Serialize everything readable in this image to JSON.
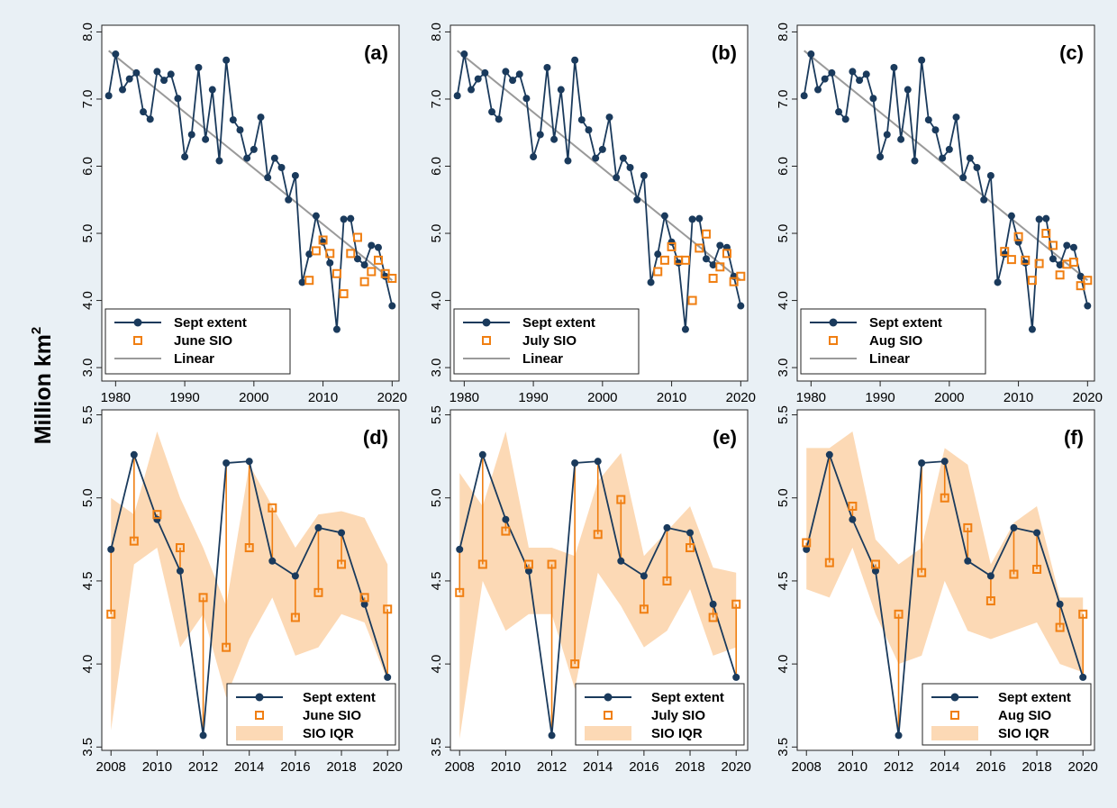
{
  "figure": {
    "ylabel": "Million km",
    "ylabel_superscript": "2",
    "background": "#e9f0f5",
    "panel_background": "#ffffff"
  },
  "colors": {
    "extent": "#1a3a5c",
    "sio": "#f07f12",
    "linear": "#9a9a9a",
    "iqr": "#fcd9b5"
  },
  "chart_data": [
    {
      "panel": "(a)",
      "type": "line",
      "xlim": [
        1978,
        2021
      ],
      "ylim": [
        2.8,
        8.1
      ],
      "xticks": [
        1980,
        1990,
        2000,
        2010,
        2020
      ],
      "yticks": [
        3.0,
        4.0,
        5.0,
        6.0,
        7.0,
        8.0
      ],
      "ytick_labels": [
        "3.0",
        "4.0",
        "5.0",
        "6.0",
        "7.0",
        "8.0"
      ],
      "legend": {
        "position": "bottom-left",
        "entries": [
          "Sept extent",
          "June SIO",
          "Linear"
        ]
      },
      "series": [
        {
          "name": "Sept extent",
          "kind": "line-markers",
          "x": [
            1979,
            1980,
            1981,
            1982,
            1983,
            1984,
            1985,
            1986,
            1987,
            1988,
            1989,
            1990,
            1991,
            1992,
            1993,
            1994,
            1995,
            1996,
            1997,
            1998,
            1999,
            2000,
            2001,
            2002,
            2003,
            2004,
            2005,
            2006,
            2007,
            2008,
            2009,
            2010,
            2011,
            2012,
            2013,
            2014,
            2015,
            2016,
            2017,
            2018,
            2019,
            2020
          ],
          "y": [
            7.05,
            7.67,
            7.14,
            7.3,
            7.39,
            6.81,
            6.7,
            7.41,
            7.28,
            7.37,
            7.01,
            6.14,
            6.47,
            7.47,
            6.4,
            7.14,
            6.08,
            7.58,
            6.69,
            6.54,
            6.12,
            6.25,
            6.73,
            5.83,
            6.12,
            5.98,
            5.5,
            5.86,
            4.27,
            4.69,
            5.26,
            4.87,
            4.56,
            3.57,
            5.21,
            5.22,
            4.62,
            4.53,
            4.82,
            4.79,
            4.36,
            3.92
          ]
        },
        {
          "name": "June SIO",
          "kind": "markers",
          "x": [
            2008,
            2009,
            2010,
            2011,
            2012,
            2013,
            2014,
            2015,
            2016,
            2017,
            2018,
            2019,
            2020
          ],
          "y": [
            4.3,
            4.74,
            4.9,
            4.7,
            4.4,
            4.1,
            4.7,
            4.94,
            4.28,
            4.43,
            4.6,
            4.4,
            4.33
          ]
        },
        {
          "name": "Linear",
          "kind": "line",
          "x": [
            1979,
            2020
          ],
          "y": [
            7.72,
            4.3
          ]
        }
      ]
    },
    {
      "panel": "(b)",
      "type": "line",
      "xlim": [
        1978,
        2021
      ],
      "ylim": [
        2.8,
        8.1
      ],
      "xticks": [
        1980,
        1990,
        2000,
        2010,
        2020
      ],
      "yticks": [
        3.0,
        4.0,
        5.0,
        6.0,
        7.0,
        8.0
      ],
      "ytick_labels": [
        "3.0",
        "4.0",
        "5.0",
        "6.0",
        "7.0",
        "8.0"
      ],
      "legend": {
        "position": "bottom-left",
        "entries": [
          "Sept extent",
          "July SIO",
          "Linear"
        ]
      },
      "series": [
        {
          "name": "Sept extent",
          "kind": "line-markers",
          "x": [
            1979,
            1980,
            1981,
            1982,
            1983,
            1984,
            1985,
            1986,
            1987,
            1988,
            1989,
            1990,
            1991,
            1992,
            1993,
            1994,
            1995,
            1996,
            1997,
            1998,
            1999,
            2000,
            2001,
            2002,
            2003,
            2004,
            2005,
            2006,
            2007,
            2008,
            2009,
            2010,
            2011,
            2012,
            2013,
            2014,
            2015,
            2016,
            2017,
            2018,
            2019,
            2020
          ],
          "y": [
            7.05,
            7.67,
            7.14,
            7.3,
            7.39,
            6.81,
            6.7,
            7.41,
            7.28,
            7.37,
            7.01,
            6.14,
            6.47,
            7.47,
            6.4,
            7.14,
            6.08,
            7.58,
            6.69,
            6.54,
            6.12,
            6.25,
            6.73,
            5.83,
            6.12,
            5.98,
            5.5,
            5.86,
            4.27,
            4.69,
            5.26,
            4.87,
            4.56,
            3.57,
            5.21,
            5.22,
            4.62,
            4.53,
            4.82,
            4.79,
            4.36,
            3.92
          ]
        },
        {
          "name": "July SIO",
          "kind": "markers",
          "x": [
            2008,
            2009,
            2010,
            2011,
            2012,
            2013,
            2014,
            2015,
            2016,
            2017,
            2018,
            2019,
            2020
          ],
          "y": [
            4.43,
            4.6,
            4.8,
            4.6,
            4.6,
            4.0,
            4.78,
            4.99,
            4.33,
            4.5,
            4.7,
            4.28,
            4.36
          ]
        },
        {
          "name": "Linear",
          "kind": "line",
          "x": [
            1979,
            2020
          ],
          "y": [
            7.72,
            4.3
          ]
        }
      ]
    },
    {
      "panel": "(c)",
      "type": "line",
      "xlim": [
        1978,
        2021
      ],
      "ylim": [
        2.8,
        8.1
      ],
      "xticks": [
        1980,
        1990,
        2000,
        2010,
        2020
      ],
      "yticks": [
        3.0,
        4.0,
        5.0,
        6.0,
        7.0,
        8.0
      ],
      "ytick_labels": [
        "3.0",
        "4.0",
        "5.0",
        "6.0",
        "7.0",
        "8.0"
      ],
      "legend": {
        "position": "bottom-left",
        "entries": [
          "Sept extent",
          "Aug SIO",
          "Linear"
        ]
      },
      "series": [
        {
          "name": "Sept extent",
          "kind": "line-markers",
          "x": [
            1979,
            1980,
            1981,
            1982,
            1983,
            1984,
            1985,
            1986,
            1987,
            1988,
            1989,
            1990,
            1991,
            1992,
            1993,
            1994,
            1995,
            1996,
            1997,
            1998,
            1999,
            2000,
            2001,
            2002,
            2003,
            2004,
            2005,
            2006,
            2007,
            2008,
            2009,
            2010,
            2011,
            2012,
            2013,
            2014,
            2015,
            2016,
            2017,
            2018,
            2019,
            2020
          ],
          "y": [
            7.05,
            7.67,
            7.14,
            7.3,
            7.39,
            6.81,
            6.7,
            7.41,
            7.28,
            7.37,
            7.01,
            6.14,
            6.47,
            7.47,
            6.4,
            7.14,
            6.08,
            7.58,
            6.69,
            6.54,
            6.12,
            6.25,
            6.73,
            5.83,
            6.12,
            5.98,
            5.5,
            5.86,
            4.27,
            4.69,
            5.26,
            4.87,
            4.56,
            3.57,
            5.21,
            5.22,
            4.62,
            4.53,
            4.82,
            4.79,
            4.36,
            3.92
          ]
        },
        {
          "name": "Aug SIO",
          "kind": "markers",
          "x": [
            2008,
            2009,
            2010,
            2011,
            2012,
            2013,
            2014,
            2015,
            2016,
            2017,
            2018,
            2019,
            2020
          ],
          "y": [
            4.73,
            4.61,
            4.95,
            4.6,
            4.3,
            4.55,
            5.0,
            4.82,
            4.38,
            4.54,
            4.57,
            4.22,
            4.3
          ]
        },
        {
          "name": "Linear",
          "kind": "line",
          "x": [
            1979,
            2020
          ],
          "y": [
            7.72,
            4.3
          ]
        }
      ]
    },
    {
      "panel": "(d)",
      "type": "line",
      "xlim": [
        2007.6,
        2020.5
      ],
      "ylim": [
        3.48,
        5.53
      ],
      "xticks": [
        2008,
        2010,
        2012,
        2014,
        2016,
        2018,
        2020
      ],
      "yticks": [
        3.5,
        4.0,
        4.5,
        5.0,
        5.5
      ],
      "ytick_labels": [
        "3.5",
        "4.0",
        "4.5",
        "5.0",
        "5.5"
      ],
      "legend": {
        "position": "bottom-right",
        "entries": [
          "Sept extent",
          "June SIO",
          "SIO IQR"
        ]
      },
      "series": [
        {
          "name": "Sept extent",
          "kind": "line-markers",
          "x": [
            2008,
            2009,
            2010,
            2011,
            2012,
            2013,
            2014,
            2015,
            2016,
            2017,
            2018,
            2019,
            2020
          ],
          "y": [
            4.69,
            5.26,
            4.87,
            4.56,
            3.57,
            5.21,
            5.22,
            4.62,
            4.53,
            4.82,
            4.79,
            4.36,
            3.92
          ]
        },
        {
          "name": "June SIO",
          "kind": "markers-stems",
          "x": [
            2008,
            2009,
            2010,
            2011,
            2012,
            2013,
            2014,
            2015,
            2016,
            2017,
            2018,
            2019,
            2020
          ],
          "y": [
            4.3,
            4.74,
            4.9,
            4.7,
            4.4,
            4.1,
            4.7,
            4.94,
            4.28,
            4.43,
            4.6,
            4.4,
            4.33
          ]
        },
        {
          "name": "SIO IQR",
          "kind": "band",
          "x": [
            2008,
            2009,
            2010,
            2011,
            2012,
            2013,
            2014,
            2015,
            2016,
            2017,
            2018,
            2019,
            2020
          ],
          "low": [
            3.6,
            4.6,
            4.7,
            4.1,
            4.3,
            3.8,
            4.15,
            4.4,
            4.05,
            4.1,
            4.3,
            4.25,
            3.9
          ],
          "high": [
            5.0,
            4.9,
            5.4,
            5.0,
            4.7,
            4.35,
            5.2,
            4.95,
            4.7,
            4.9,
            4.92,
            4.88,
            4.6
          ]
        }
      ]
    },
    {
      "panel": "(e)",
      "type": "line",
      "xlim": [
        2007.6,
        2020.5
      ],
      "ylim": [
        3.48,
        5.53
      ],
      "xticks": [
        2008,
        2010,
        2012,
        2014,
        2016,
        2018,
        2020
      ],
      "yticks": [
        3.5,
        4.0,
        4.5,
        5.0,
        5.5
      ],
      "ytick_labels": [
        "3.5",
        "4.0",
        "4.5",
        "5.0",
        "5.5"
      ],
      "legend": {
        "position": "bottom-right",
        "entries": [
          "Sept extent",
          "July SIO",
          "SIO IQR"
        ]
      },
      "series": [
        {
          "name": "Sept extent",
          "kind": "line-markers",
          "x": [
            2008,
            2009,
            2010,
            2011,
            2012,
            2013,
            2014,
            2015,
            2016,
            2017,
            2018,
            2019,
            2020
          ],
          "y": [
            4.69,
            5.26,
            4.87,
            4.56,
            3.57,
            5.21,
            5.22,
            4.62,
            4.53,
            4.82,
            4.79,
            4.36,
            3.92
          ]
        },
        {
          "name": "July SIO",
          "kind": "markers-stems",
          "x": [
            2008,
            2009,
            2010,
            2011,
            2012,
            2013,
            2014,
            2015,
            2016,
            2017,
            2018,
            2019,
            2020
          ],
          "y": [
            4.43,
            4.6,
            4.8,
            4.6,
            4.6,
            4.0,
            4.78,
            4.99,
            4.33,
            4.5,
            4.7,
            4.28,
            4.36
          ]
        },
        {
          "name": "SIO IQR",
          "kind": "band",
          "x": [
            2008,
            2009,
            2010,
            2011,
            2012,
            2013,
            2014,
            2015,
            2016,
            2017,
            2018,
            2019,
            2020
          ],
          "low": [
            3.55,
            4.5,
            4.2,
            4.3,
            4.3,
            3.85,
            4.55,
            4.35,
            4.1,
            4.2,
            4.45,
            4.05,
            4.1
          ],
          "high": [
            5.15,
            4.95,
            5.4,
            4.7,
            4.7,
            4.65,
            5.1,
            5.27,
            4.65,
            4.8,
            4.95,
            4.58,
            4.55
          ]
        }
      ]
    },
    {
      "panel": "(f)",
      "type": "line",
      "xlim": [
        2007.6,
        2020.5
      ],
      "ylim": [
        3.48,
        5.53
      ],
      "xticks": [
        2008,
        2010,
        2012,
        2014,
        2016,
        2018,
        2020
      ],
      "yticks": [
        3.5,
        4.0,
        4.5,
        5.0,
        5.5
      ],
      "ytick_labels": [
        "3.5",
        "4.0",
        "4.5",
        "5.0",
        "5.5"
      ],
      "legend": {
        "position": "bottom-right",
        "entries": [
          "Sept extent",
          "Aug SIO",
          "SIO IQR"
        ]
      },
      "series": [
        {
          "name": "Sept extent",
          "kind": "line-markers",
          "x": [
            2008,
            2009,
            2010,
            2011,
            2012,
            2013,
            2014,
            2015,
            2016,
            2017,
            2018,
            2019,
            2020
          ],
          "y": [
            4.69,
            5.26,
            4.87,
            4.56,
            3.57,
            5.21,
            5.22,
            4.62,
            4.53,
            4.82,
            4.79,
            4.36,
            3.92
          ]
        },
        {
          "name": "Aug SIO",
          "kind": "markers-stems",
          "x": [
            2008,
            2009,
            2010,
            2011,
            2012,
            2013,
            2014,
            2015,
            2016,
            2017,
            2018,
            2019,
            2020
          ],
          "y": [
            4.73,
            4.61,
            4.95,
            4.6,
            4.3,
            4.55,
            5.0,
            4.82,
            4.38,
            4.54,
            4.57,
            4.22,
            4.3
          ]
        },
        {
          "name": "SIO IQR",
          "kind": "band",
          "x": [
            2008,
            2009,
            2010,
            2011,
            2012,
            2013,
            2014,
            2015,
            2016,
            2017,
            2018,
            2019,
            2020
          ],
          "low": [
            4.45,
            4.4,
            4.7,
            4.3,
            4.0,
            4.05,
            4.5,
            4.2,
            4.15,
            4.2,
            4.25,
            4.0,
            3.95
          ],
          "high": [
            5.3,
            5.3,
            5.4,
            4.75,
            4.6,
            4.7,
            5.3,
            5.2,
            4.6,
            4.85,
            4.95,
            4.4,
            4.4
          ]
        }
      ]
    }
  ]
}
